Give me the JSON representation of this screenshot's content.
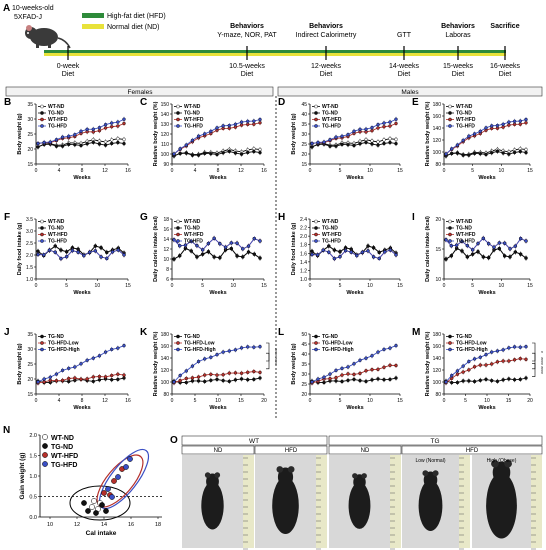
{
  "panel_a": {
    "letter": "A",
    "mouse_line1": "10-weeks-old",
    "mouse_line2": "5XFAD-J",
    "legend_hfd": "High-fat diet (HFD)",
    "legend_nd": "Normal diet (ND)",
    "colors": {
      "hfd": "#2e8b3a",
      "nd": "#e8e23a"
    },
    "milestones": [
      {
        "below": [
          "0-week",
          "Diet"
        ],
        "above": []
      },
      {
        "below": [
          "10.5-weeks",
          "Diet"
        ],
        "above": [
          "Behaviors",
          "Y-maze, NOR, PAT"
        ]
      },
      {
        "below": [
          "12-weeks",
          "Diet"
        ],
        "above": [
          "Behaviors",
          "Indirect Calorimetry"
        ]
      },
      {
        "below": [
          "14-weeks",
          "Diet"
        ],
        "above": [
          "",
          "GTT"
        ]
      },
      {
        "below": [
          "15-weeks",
          "Diet"
        ],
        "above": [
          "Behaviors",
          "Laboras"
        ]
      },
      {
        "below": [
          "16-weeks",
          "Diet"
        ],
        "above": [
          "Sacrifice",
          ""
        ]
      }
    ]
  },
  "section_headers": {
    "females": "Females",
    "males": "Males"
  },
  "series_colors": {
    "WT-ND": "#ffffff",
    "TG-ND": "#111111",
    "WT-HFD": "#b5302b",
    "TG-HFD": "#3b4fc4",
    "TG-HFD-Low": "#b5302b",
    "TG-HFD-High": "#3b4fc4"
  },
  "x_label": "Weeks",
  "panels": [
    {
      "letter": "B",
      "ylabel": "Body weight (g)",
      "yticks": [
        "15",
        "20",
        "25",
        "30",
        "35"
      ],
      "xticks": [
        "0",
        "4",
        "8",
        "12",
        "16"
      ],
      "legend": [
        "WT-ND",
        "TG-ND",
        "WT-HFD",
        "TG-HFD"
      ],
      "kind": "bw_f"
    },
    {
      "letter": "C",
      "ylabel": "Relative body weight (%)",
      "yticks": [
        "90",
        "100",
        "110",
        "120",
        "130",
        "140",
        "150"
      ],
      "xticks": [
        "0",
        "4",
        "8",
        "12",
        "16"
      ],
      "legend": [
        "WT-ND",
        "TG-ND",
        "WT-HFD",
        "TG-HFD"
      ],
      "kind": "rel_f"
    },
    {
      "letter": "D",
      "ylabel": "Body weight (g)",
      "yticks": [
        "15",
        "20",
        "25",
        "30",
        "35",
        "40",
        "45"
      ],
      "xticks": [
        "0",
        "5",
        "10",
        "15"
      ],
      "legend": [
        "WT-ND",
        "TG-ND",
        "WT-HFD",
        "TG-HFD"
      ],
      "kind": "bw_m"
    },
    {
      "letter": "E",
      "ylabel": "Relative body weight (%)",
      "yticks": [
        "80",
        "100",
        "120",
        "140",
        "160",
        "180"
      ],
      "xticks": [
        "0",
        "5",
        "10",
        "15"
      ],
      "legend": [
        "WT-ND",
        "TG-ND",
        "WT-HFD",
        "TG-HFD"
      ],
      "kind": "rel_m"
    },
    {
      "letter": "F",
      "ylabel": "Daily food intake (g)",
      "yticks": [
        "1.0",
        "1.5",
        "2.0",
        "2.5",
        "3.0",
        "3.5"
      ],
      "xticks": [
        "0",
        "5",
        "10",
        "15"
      ],
      "legend": [
        "WT-ND",
        "TG-ND",
        "WT-HFD",
        "TG-HFD"
      ],
      "kind": "food_f"
    },
    {
      "letter": "G",
      "ylabel": "Daily calorie intake (kcal)",
      "yticks": [
        "6",
        "8",
        "10",
        "12",
        "14",
        "16",
        "18"
      ],
      "xticks": [
        "0",
        "5",
        "10",
        "15"
      ],
      "legend": [
        "WT-ND",
        "TG-ND",
        "WT-HFD",
        "TG-HFD"
      ],
      "kind": "cal_f"
    },
    {
      "letter": "H",
      "ylabel": "Daily food intake (g)",
      "yticks": [
        "1.0",
        "1.2",
        "1.4",
        "1.6",
        "1.8",
        "2.0",
        "2.2",
        "2.4"
      ],
      "xticks": [
        "0",
        "5",
        "10",
        "15"
      ],
      "legend": [
        "WT-ND",
        "TG-ND",
        "WT-HFD",
        "TG-HFD"
      ],
      "kind": "food_m"
    },
    {
      "letter": "I",
      "ylabel": "Daily calorie intake (kcal)",
      "yticks": [
        "10",
        "15",
        "20"
      ],
      "xticks": [
        "0",
        "5",
        "10",
        "15"
      ],
      "legend": [
        "WT-ND",
        "TG-ND",
        "WT-HFD",
        "TG-HFD"
      ],
      "kind": "cal_m"
    },
    {
      "letter": "J",
      "ylabel": "Body weight (g)",
      "yticks": [
        "15",
        "20",
        "25",
        "30",
        "35"
      ],
      "xticks": [
        "0",
        "4",
        "8",
        "12",
        "16"
      ],
      "legend": [
        "TG-ND",
        "TG-HFD-Low",
        "TG-HFD-High"
      ],
      "kind": "bw_fs"
    },
    {
      "letter": "K",
      "ylabel": "Relative body weight (%)",
      "yticks": [
        "80",
        "100",
        "120",
        "140",
        "160",
        "180"
      ],
      "xticks": [
        "0",
        "5",
        "10",
        "15",
        "20"
      ],
      "legend": [
        "TG-ND",
        "TG-HFD-Low",
        "TG-HFD-High"
      ],
      "kind": "rel_fs",
      "sig": [
        "****",
        "****"
      ]
    },
    {
      "letter": "L",
      "ylabel": "Body weight (g)",
      "yticks": [
        "20",
        "25",
        "30",
        "35",
        "40",
        "45",
        "50"
      ],
      "xticks": [
        "0",
        "5",
        "10",
        "15"
      ],
      "legend": [
        "TG-ND",
        "TG-HFD-Low",
        "TG-HFD-High"
      ],
      "kind": "bw_ms"
    },
    {
      "letter": "M",
      "ylabel": "Relative body weight (%)",
      "yticks": [
        "80",
        "100",
        "120",
        "140",
        "160",
        "180"
      ],
      "xticks": [
        "0",
        "5",
        "10",
        "15",
        "20"
      ],
      "legend": [
        "TG-ND",
        "TG-HFD-Low",
        "TG-HFD-High"
      ],
      "kind": "rel_ms",
      "sig": [
        "*",
        "****",
        "****"
      ]
    }
  ],
  "panel_n": {
    "letter": "N",
    "ylabel": "Gain weight (g)",
    "xlabel": "Cal intake",
    "yticks": [
      "0.0",
      "0.5",
      "1.0",
      "1.5",
      "2.0"
    ],
    "xticks": [
      "10",
      "12",
      "14",
      "16",
      "18"
    ],
    "legend": [
      "WT-ND",
      "TG-ND",
      "WT-HFD",
      "TG-HFD"
    ]
  },
  "panel_o": {
    "letter": "O",
    "top_wt": "WT",
    "top_tg": "TG",
    "labels": [
      "ND",
      "HFD",
      "ND",
      "HFD"
    ],
    "sub_labels": [
      "Low (Normal)",
      "High (Obese)"
    ]
  }
}
